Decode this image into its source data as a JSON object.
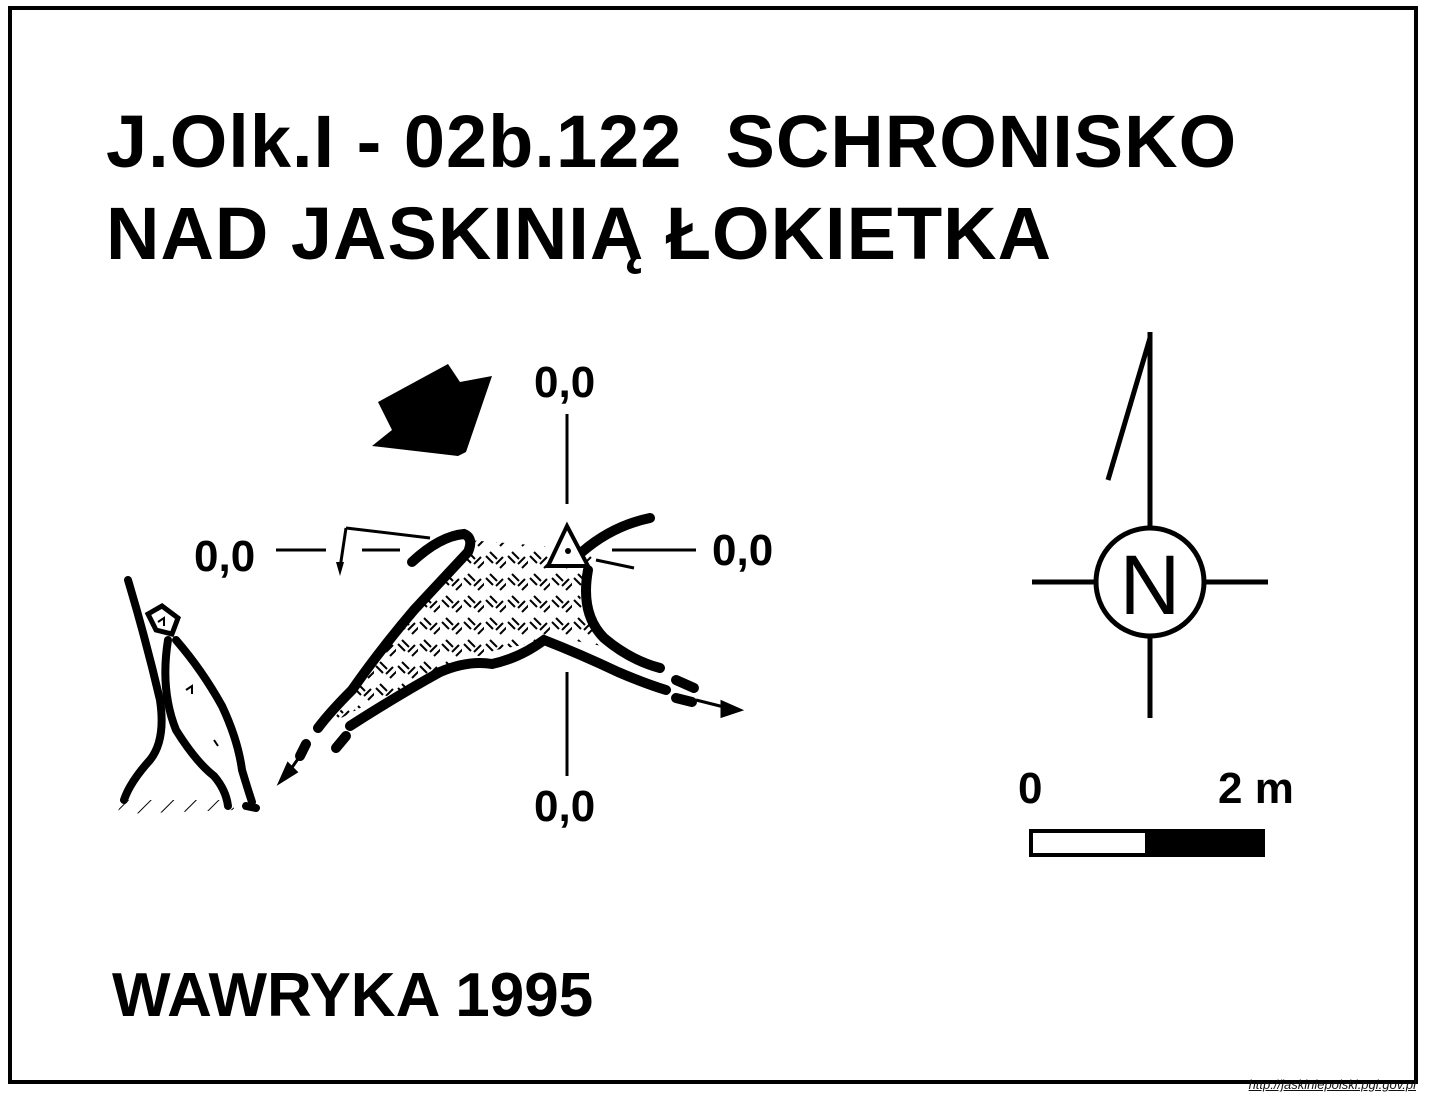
{
  "map": {
    "title_line1": "J.Olk.I - 02b.122  SCHRONISKO",
    "title_line2": "NAD JASKINIĄ ŁOKIETKA",
    "author": "WAWRYKA 1995",
    "source": "http://jaskiniepolski.pgi.gov.pl",
    "level_top": "0,0",
    "level_left": "0,0",
    "level_right": "0,0",
    "level_bottom": "0,0",
    "north_letter": "N",
    "scale_min": "0",
    "scale_max": "2 m",
    "colors": {
      "ink": "#000000",
      "paper": "#ffffff"
    },
    "icons": [
      "entrance-arrow-icon",
      "survey-station-icon",
      "north-arrow-icon",
      "scale-bar-icon"
    ]
  }
}
